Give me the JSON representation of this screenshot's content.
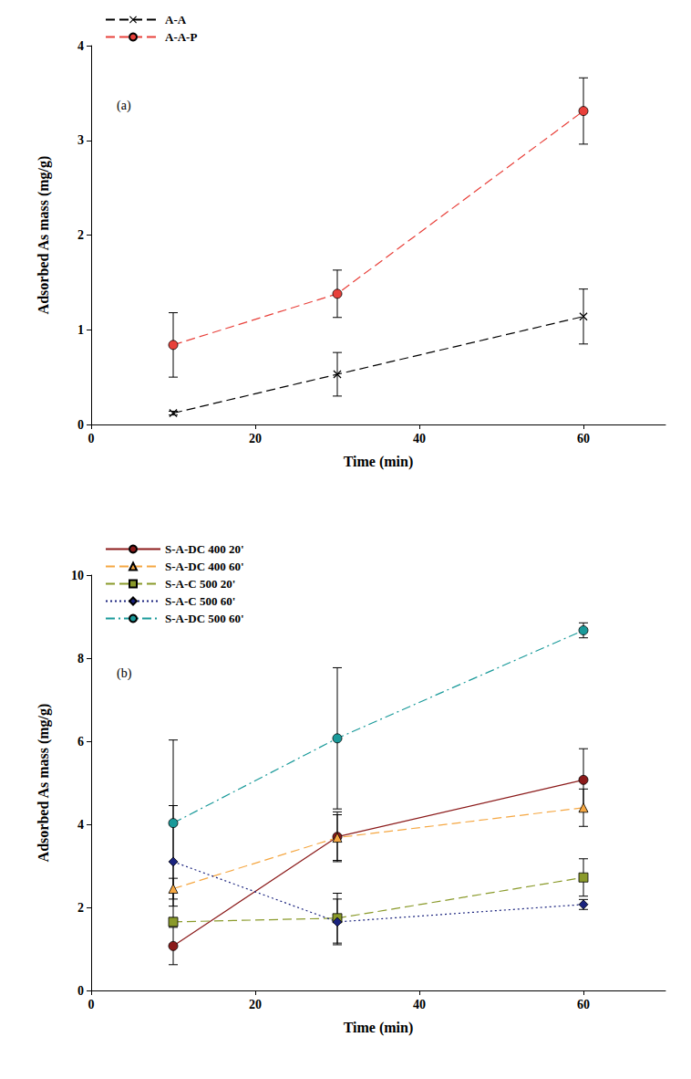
{
  "chart_data": [
    {
      "type": "line",
      "annotation": "(a)",
      "x_label": "Time (min)",
      "y_label": "Adsorbed As mass (mg/g)",
      "xlim": [
        0,
        70
      ],
      "xticks": [
        0,
        20,
        40,
        60
      ],
      "ylim": [
        0,
        4
      ],
      "yticks": [
        0,
        1,
        2,
        3,
        4
      ],
      "grid": false,
      "legend": "upper left",
      "series": [
        {
          "name": "A-A",
          "color": "#000000",
          "marker": "x",
          "line_style": "dashed",
          "x": [
            10,
            30,
            60
          ],
          "values": [
            0.12,
            0.53,
            1.14
          ],
          "errors": [
            0.02,
            0.23,
            0.29
          ]
        },
        {
          "name": "A-A-P",
          "color": "#e8403a",
          "marker": "circle",
          "line_style": "dashed",
          "x": [
            10,
            30,
            60
          ],
          "values": [
            0.84,
            1.38,
            3.31
          ],
          "errors": [
            0.34,
            0.25,
            0.35
          ]
        }
      ]
    },
    {
      "type": "line",
      "annotation": "(b)",
      "x_label": "Time (min)",
      "y_label": "Adsorbed As mass (mg/g)",
      "xlim": [
        0,
        70
      ],
      "xticks": [
        0,
        20,
        40,
        60
      ],
      "ylim": [
        0,
        10
      ],
      "yticks": [
        0,
        2,
        4,
        6,
        8,
        10
      ],
      "grid": false,
      "legend": "upper left",
      "series": [
        {
          "name": "S-A-DC 400 20'",
          "color": "#8b1a1a",
          "marker": "circle",
          "line_style": "solid",
          "x": [
            10,
            30,
            60
          ],
          "values": [
            1.07,
            3.7,
            5.07
          ],
          "errors": [
            0.45,
            0.6,
            0.75
          ]
        },
        {
          "name": "S-A-DC 400 60'",
          "color": "#f5a742",
          "marker": "triangle",
          "line_style": "dashed",
          "x": [
            10,
            30,
            60
          ],
          "values": [
            2.45,
            3.68,
            4.4
          ],
          "errors": [
            0.25,
            0.55,
            0.45
          ]
        },
        {
          "name": "S-A-C 500 20'",
          "color": "#8a9a2a",
          "marker": "square",
          "line_style": "dashed",
          "x": [
            10,
            30,
            60
          ],
          "values": [
            1.65,
            1.74,
            2.72
          ],
          "errors": [
            0.1,
            0.6,
            0.45
          ]
        },
        {
          "name": "S-A-C 500 60'",
          "color": "#1a237e",
          "marker": "diamond",
          "line_style": "dotted",
          "x": [
            10,
            30,
            60
          ],
          "values": [
            3.1,
            1.65,
            2.07
          ],
          "errors": [
            1.35,
            0.55,
            0.12
          ]
        },
        {
          "name": "S-A-DC 500 60'",
          "color": "#1a9a9a",
          "marker": "circle",
          "line_style": "dashdot",
          "x": [
            10,
            30,
            60
          ],
          "values": [
            4.03,
            6.07,
            8.67
          ],
          "errors": [
            2.0,
            1.7,
            0.18
          ]
        }
      ]
    }
  ]
}
